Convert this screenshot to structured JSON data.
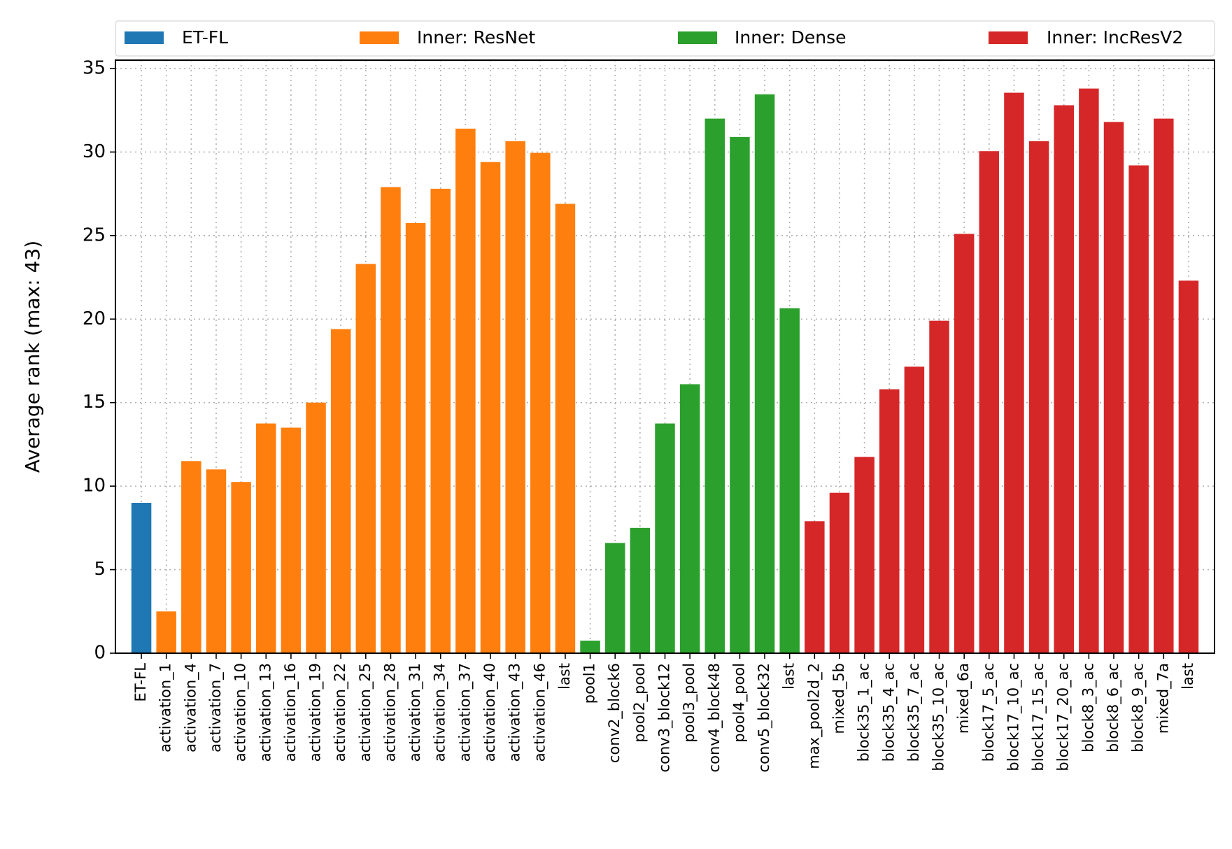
{
  "chart_data": {
    "type": "bar",
    "ylabel": "Average rank (max: 43)",
    "categories": [
      "ET-FL",
      "activation_1",
      "activation_4",
      "activation_7",
      "activation_10",
      "activation_13",
      "activation_16",
      "activation_19",
      "activation_22",
      "activation_25",
      "activation_28",
      "activation_31",
      "activation_34",
      "activation_37",
      "activation_40",
      "activation_43",
      "activation_46",
      "last",
      "pool1",
      "conv2_block6",
      "pool2_pool",
      "conv3_block12",
      "pool3_pool",
      "conv4_block48",
      "pool4_pool",
      "conv5_block32",
      "last",
      "max_pool2d_2",
      "mixed_5b",
      "block35_1_ac",
      "block35_4_ac",
      "block35_7_ac",
      "block35_10_ac",
      "mixed_6a",
      "block17_5_ac",
      "block17_10_ac",
      "block17_15_ac",
      "block17_20_ac",
      "block8_3_ac",
      "block8_6_ac",
      "block8_9_ac",
      "mixed_7a",
      "last"
    ],
    "series": [
      {
        "name": "ET-FL",
        "color": "#1f77b4",
        "values": [
          9.0,
          null,
          null,
          null,
          null,
          null,
          null,
          null,
          null,
          null,
          null,
          null,
          null,
          null,
          null,
          null,
          null,
          null,
          null,
          null,
          null,
          null,
          null,
          null,
          null,
          null,
          null,
          null,
          null,
          null,
          null,
          null,
          null,
          null,
          null,
          null,
          null,
          null,
          null,
          null,
          null,
          null,
          null
        ]
      },
      {
        "name": "Inner: ResNet",
        "color": "#ff7f0e",
        "values": [
          null,
          2.5,
          11.5,
          11.0,
          10.25,
          13.75,
          13.5,
          15.0,
          19.4,
          23.3,
          27.9,
          25.75,
          27.8,
          31.4,
          29.4,
          30.65,
          29.95,
          26.9,
          null,
          null,
          null,
          null,
          null,
          null,
          null,
          null,
          null,
          null,
          null,
          null,
          null,
          null,
          null,
          null,
          null,
          null,
          null,
          null,
          null,
          null,
          null,
          null,
          null
        ]
      },
      {
        "name": "Inner: Dense",
        "color": "#2ca02c",
        "values": [
          null,
          null,
          null,
          null,
          null,
          null,
          null,
          null,
          null,
          null,
          null,
          null,
          null,
          null,
          null,
          null,
          null,
          null,
          0.75,
          6.6,
          7.5,
          13.75,
          16.1,
          32.0,
          30.9,
          33.45,
          20.65,
          null,
          null,
          null,
          null,
          null,
          null,
          null,
          null,
          null,
          null,
          null,
          null,
          null,
          null,
          null,
          null
        ]
      },
      {
        "name": "Inner: IncResV2",
        "color": "#d62728",
        "values": [
          null,
          null,
          null,
          null,
          null,
          null,
          null,
          null,
          null,
          null,
          null,
          null,
          null,
          null,
          null,
          null,
          null,
          null,
          null,
          null,
          null,
          null,
          null,
          null,
          null,
          null,
          null,
          7.9,
          9.6,
          11.75,
          15.8,
          17.15,
          19.9,
          25.1,
          30.05,
          33.55,
          30.65,
          32.8,
          33.8,
          31.8,
          29.2,
          32.0,
          22.3
        ]
      }
    ],
    "ylim": [
      0,
      35.5
    ],
    "yticks": [
      0,
      5,
      10,
      15,
      20,
      25,
      30,
      35
    ],
    "grid": true,
    "legend": "top"
  }
}
